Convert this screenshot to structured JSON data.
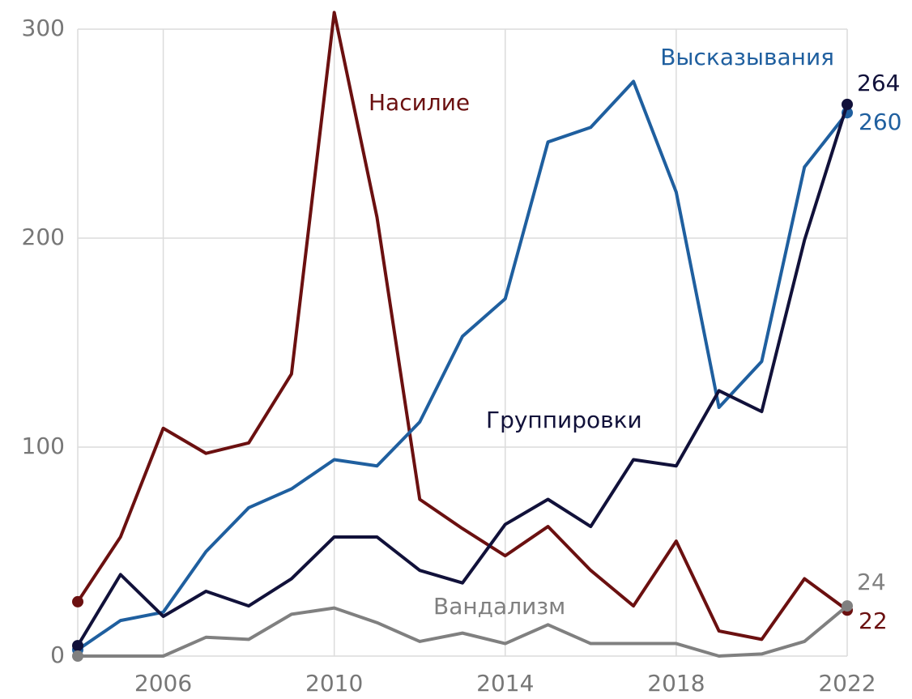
{
  "chart_data": {
    "type": "line",
    "x": [
      2004,
      2005,
      2006,
      2007,
      2008,
      2009,
      2010,
      2011,
      2012,
      2013,
      2014,
      2015,
      2016,
      2017,
      2018,
      2019,
      2020,
      2021,
      2022
    ],
    "xlim": [
      2004,
      2022
    ],
    "xticks": [
      2006,
      2010,
      2014,
      2018,
      2022
    ],
    "ylim": [
      0,
      300
    ],
    "yticks": [
      0,
      100,
      200,
      300
    ],
    "grid": true,
    "series": [
      {
        "name": "Насилие",
        "color": "#6b1010",
        "values": [
          26,
          57,
          109,
          97,
          102,
          135,
          308,
          210,
          75,
          61,
          48,
          62,
          41,
          24,
          55,
          12,
          8,
          37,
          22
        ]
      },
      {
        "name": "Высказывания",
        "color": "#1f5f9f",
        "values": [
          3,
          17,
          21,
          50,
          71,
          80,
          94,
          91,
          112,
          153,
          171,
          246,
          253,
          275,
          222,
          119,
          141,
          234,
          260
        ]
      },
      {
        "name": "Группировки",
        "color": "#11113a",
        "values": [
          5,
          39,
          19,
          31,
          24,
          37,
          57,
          57,
          41,
          35,
          63,
          75,
          62,
          94,
          91,
          127,
          117,
          199,
          264
        ]
      },
      {
        "name": "Вандализм",
        "color": "#808080",
        "values": [
          0,
          0,
          0,
          9,
          8,
          20,
          23,
          16,
          7,
          11,
          6,
          15,
          6,
          6,
          6,
          0,
          1,
          7,
          24
        ]
      }
    ]
  }
}
